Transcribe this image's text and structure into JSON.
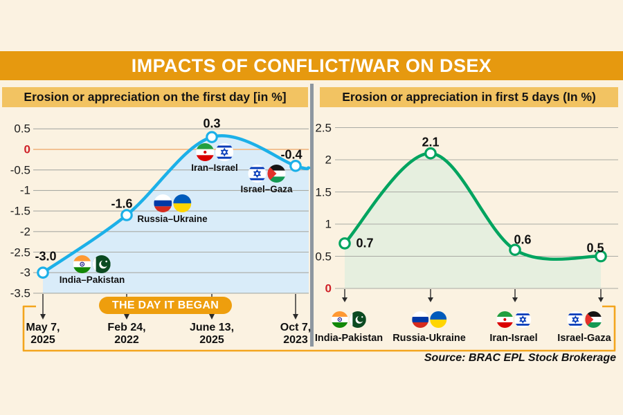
{
  "header": {
    "title": "IMPACTS OF CONFLICT/WAR ON DSEX"
  },
  "panels": {
    "left": {
      "subtitle": "Erosion or appreciation on the first day [in %]"
    },
    "right": {
      "subtitle": "Erosion or appreciation in first 5 days (In %)"
    }
  },
  "banner": {
    "label": "THE DAY IT BEGAN"
  },
  "source": "Source: BRAC EPL Stock Brokerage",
  "colors": {
    "background": "#fbf2e1",
    "header_bar": "#e6990f",
    "subtitle_bar": "#f2c362",
    "divider": "#8d97a0",
    "bracket": "#f3a51d",
    "pill": "#ee9e0d",
    "grid": "#a9aaa4",
    "zero_tick_red": "#cf2128",
    "left_line": "#1cb0e8",
    "left_fill": "#d9ecf9",
    "left_zero_line": "#f2c193",
    "right_line": "#00a45f",
    "right_fill": "#e6efdf"
  },
  "chart_data": [
    {
      "type": "area",
      "title": "Erosion or appreciation on the first day [in %]",
      "categories": [
        "India–Pakistan",
        "Russia–Ukraine",
        "Iran–Israel",
        "Israel–Gaza"
      ],
      "flags": [
        [
          "india",
          "pakistan"
        ],
        [
          "russia",
          "ukraine"
        ],
        [
          "iran",
          "israel"
        ],
        [
          "israel",
          "palestine"
        ]
      ],
      "values": [
        -3.0,
        -1.6,
        0.3,
        -0.4
      ],
      "point_labels": [
        "-3.0",
        "-1.6",
        "0.3",
        "-0.4"
      ],
      "x_dates": [
        [
          "May 7,",
          "2025"
        ],
        [
          "Feb 24,",
          "2022"
        ],
        [
          "June 13,",
          "2025"
        ],
        [
          "Oct 7,",
          "2023"
        ]
      ],
      "y_tick_labels": [
        "0.5",
        "0",
        "-0.5",
        "-1",
        "-1.5",
        "-2",
        "-2.5",
        "-3",
        "-3.5"
      ],
      "y_ticks": [
        0.5,
        0,
        -0.5,
        -1,
        -1.5,
        -2,
        -2.5,
        -3,
        -3.5
      ],
      "ylim": [
        -3.5,
        0.5
      ],
      "grid": true,
      "legend": "none",
      "line_color": "#1cb0e8",
      "fill_color": "#d9ecf9"
    },
    {
      "type": "area",
      "title": "Erosion or appreciation in first 5 days (In %)",
      "categories": [
        "India-Pakistan",
        "Russia-Ukraine",
        "Iran-Israel",
        "Israel-Gaza"
      ],
      "flags": [
        [
          "india",
          "pakistan"
        ],
        [
          "russia",
          "ukraine"
        ],
        [
          "iran",
          "israel"
        ],
        [
          "israel",
          "palestine"
        ]
      ],
      "values": [
        0.7,
        2.1,
        0.6,
        0.5
      ],
      "point_labels": [
        "0.7",
        "2.1",
        "0.6",
        "0.5"
      ],
      "y_tick_labels": [
        "2.5",
        "2",
        "1.5",
        "1",
        "0.5",
        "0"
      ],
      "y_ticks": [
        2.5,
        2,
        1.5,
        1,
        0.5,
        0
      ],
      "ylim": [
        0,
        2.5
      ],
      "grid": true,
      "legend": "none",
      "line_color": "#00a45f",
      "fill_color": "#e6efdf"
    }
  ]
}
